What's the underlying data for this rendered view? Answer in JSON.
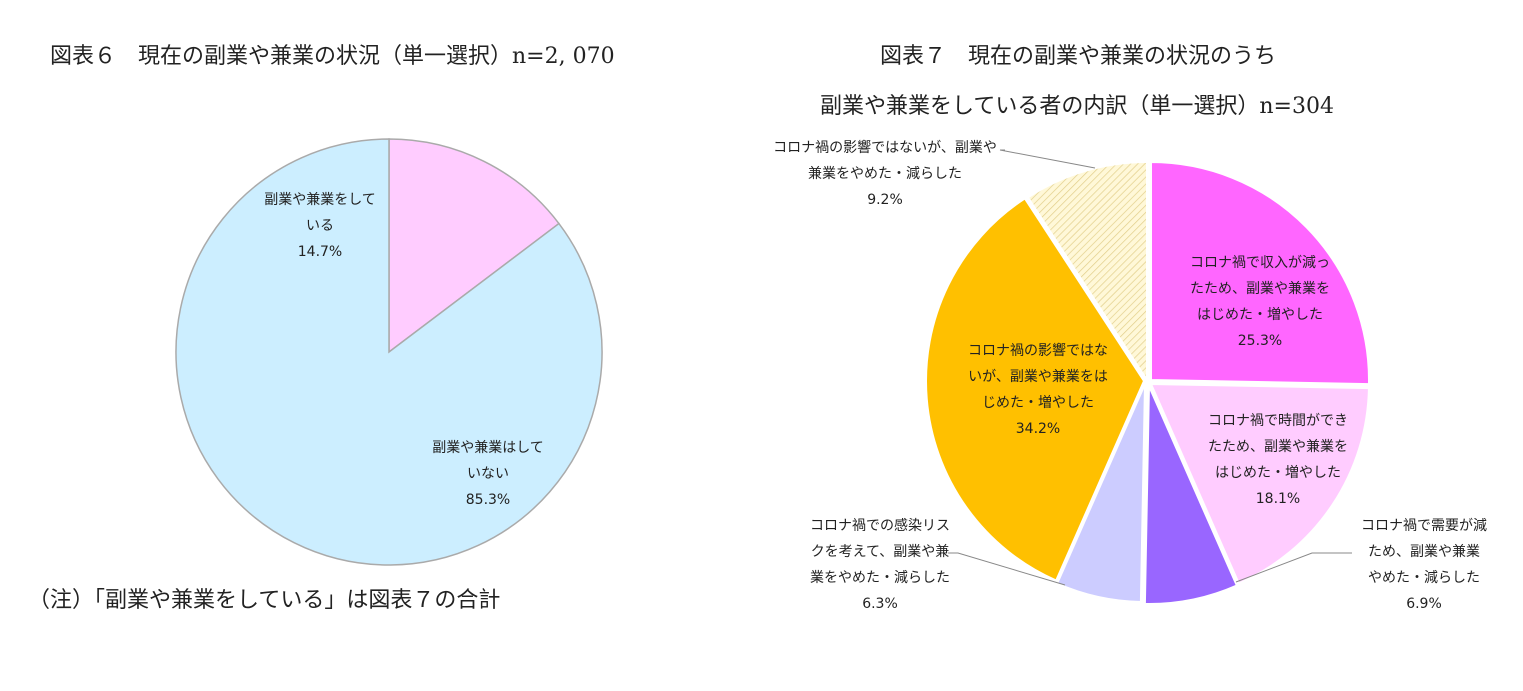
{
  "left_chart": {
    "title": "図表６　現在の副業や兼業の状況（単一選択）n=2, 070",
    "note": "（注）「副業や兼業をしている」は図表７の合計"
  },
  "right_chart": {
    "title_line1": "図表７　現在の副業や兼業の状況のうち",
    "title_line2": "副業や兼業をしている者の内訳（単一選択）n=304"
  },
  "chart_data": [
    {
      "type": "pie",
      "title": "図表６　現在の副業や兼業の状況（単一選択）n=2, 070",
      "slices": [
        {
          "label_lines": [
            "副業や兼業をして",
            "いる"
          ],
          "value": 14.7,
          "value_label": "14.7%",
          "color": "#ffccff"
        },
        {
          "label_lines": [
            "副業や兼業はして",
            "いない"
          ],
          "value": 85.3,
          "value_label": "85.3%",
          "color": "#cceeff"
        }
      ]
    },
    {
      "type": "pie",
      "title": "図表７　現在の副業や兼業の状況のうち副業や兼業をしている者の内訳（単一選択）n=304",
      "slices": [
        {
          "label_lines": [
            "コロナ禍で収入が減っ",
            "たため、副業や兼業を",
            "はじめた・増やした"
          ],
          "value": 25.3,
          "value_label": "25.3%",
          "color": "#ff66ff"
        },
        {
          "label_lines": [
            "コロナ禍で時間ができ",
            "たため、副業や兼業を",
            "はじめた・増やした"
          ],
          "value": 18.1,
          "value_label": "18.1%",
          "color": "#ffccff"
        },
        {
          "label_lines": [
            "コロナ禍で需要が減",
            "ため、副業や兼業",
            "やめた・減らした"
          ],
          "value": 6.9,
          "value_label": "6.9%",
          "color": "#9966ff"
        },
        {
          "label_lines": [
            "コロナ禍での感染リス",
            "クを考えて、副業や兼",
            "業をやめた・減らした"
          ],
          "value": 6.3,
          "value_label": "6.3%",
          "color": "#ccccff"
        },
        {
          "label_lines": [
            "コロナ禍の影響ではな",
            "いが、副業や兼業をは",
            "じめた・増やした"
          ],
          "value": 34.2,
          "value_label": "34.2%",
          "color": "#ffc000"
        },
        {
          "label_lines": [
            "コロナ禍の影響ではないが、副業や",
            "兼業をやめた・減らした"
          ],
          "value": 9.2,
          "value_label": "9.2%",
          "color": "#fff2cc"
        }
      ]
    }
  ]
}
